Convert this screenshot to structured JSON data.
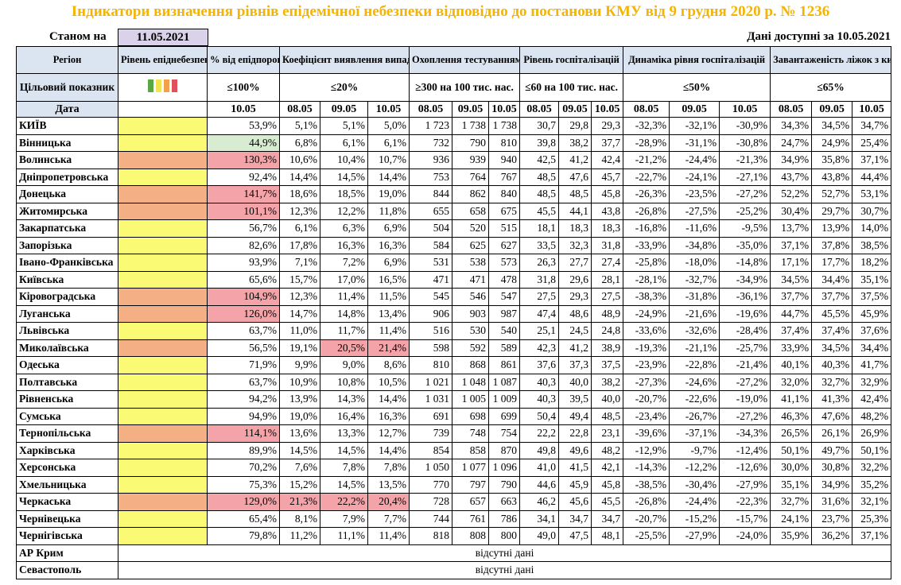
{
  "title": "Індикатори визначення рівнів епідемічної небезпеки відповідно до постанови КМУ від 9 грудня 2020 р. № 1236",
  "status_label": "Станом на",
  "status_date": "11.05.2021",
  "data_available": "Дані доступні за  10.05.2021",
  "headers": {
    "region": "Регіон",
    "level": "Рівень епіднебезпеки",
    "pct": "% від епідпорогу",
    "coef": "Коефіцієнт виявлення випадків інфікування",
    "test": "Охоплення тестуванням",
    "hosp": "Рівень госпіталізацій",
    "dyn": "Динаміка рівня госпіталізацій",
    "beds": "Завантаженість ліжок з киснем"
  },
  "target": {
    "label": "Цільовий показник",
    "pct": "≤100%",
    "coef": "≤20%",
    "test": "≥300 на 100 тис. нас.",
    "hosp": "≤60 на 100 тис. нас.",
    "dyn": "≤50%",
    "beds": "≤65%"
  },
  "swatch_colors": [
    "#5aa845",
    "#f2e34f",
    "#f3a04a",
    "#e0505b"
  ],
  "date_label": "Дата",
  "dates": {
    "pct": "10.05",
    "coef": [
      "08.05",
      "09.05",
      "10.05"
    ],
    "test": [
      "08.05",
      "09.05",
      "10.05"
    ],
    "hosp": [
      "08.05",
      "09.05",
      "10.05"
    ],
    "dyn": [
      "08.05",
      "09.05",
      "10.05"
    ],
    "beds": [
      "08.05",
      "09.05",
      "10.05"
    ]
  },
  "rows": [
    {
      "region": "КИЇВ",
      "level": "yellow",
      "pct": "53,9%",
      "coef": [
        "5,1%",
        "5,1%",
        "5,0%"
      ],
      "test": [
        "1 723",
        "1 738",
        "1 738"
      ],
      "hosp": [
        "30,7",
        "29,8",
        "29,3"
      ],
      "dyn": [
        "-32,3%",
        "-32,1%",
        "-30,9%"
      ],
      "beds": [
        "34,3%",
        "34,5%",
        "34,7%"
      ]
    },
    {
      "region": "Вінницька",
      "level": "yellow",
      "pct": "44,9%",
      "pct_hl": "green",
      "coef": [
        "6,8%",
        "6,1%",
        "6,1%"
      ],
      "test": [
        "732",
        "790",
        "810"
      ],
      "hosp": [
        "39,8",
        "38,2",
        "37,7"
      ],
      "dyn": [
        "-28,9%",
        "-31,1%",
        "-30,8%"
      ],
      "beds": [
        "24,7%",
        "24,9%",
        "25,4%"
      ]
    },
    {
      "region": "Волинська",
      "level": "orange",
      "pct": "130,3%",
      "pct_hl": "red",
      "coef": [
        "10,6%",
        "10,4%",
        "10,7%"
      ],
      "test": [
        "936",
        "939",
        "940"
      ],
      "hosp": [
        "42,5",
        "41,2",
        "42,4"
      ],
      "dyn": [
        "-21,2%",
        "-24,4%",
        "-21,3%"
      ],
      "beds": [
        "34,9%",
        "35,8%",
        "37,1%"
      ]
    },
    {
      "region": "Дніпропетровська",
      "level": "yellow",
      "pct": "92,4%",
      "coef": [
        "14,4%",
        "14,5%",
        "14,4%"
      ],
      "test": [
        "753",
        "764",
        "767"
      ],
      "hosp": [
        "48,5",
        "47,6",
        "45,7"
      ],
      "dyn": [
        "-22,7%",
        "-24,1%",
        "-27,1%"
      ],
      "beds": [
        "43,7%",
        "43,8%",
        "44,4%"
      ]
    },
    {
      "region": "Донецька",
      "level": "orange",
      "pct": "141,7%",
      "pct_hl": "red",
      "coef": [
        "18,6%",
        "18,5%",
        "19,0%"
      ],
      "test": [
        "844",
        "862",
        "840"
      ],
      "hosp": [
        "48,5",
        "48,5",
        "45,8"
      ],
      "dyn": [
        "-26,3%",
        "-23,5%",
        "-27,2%"
      ],
      "beds": [
        "52,2%",
        "52,7%",
        "53,1%"
      ]
    },
    {
      "region": "Житомирська",
      "level": "orange",
      "pct": "101,1%",
      "pct_hl": "red",
      "coef": [
        "12,3%",
        "12,2%",
        "11,8%"
      ],
      "test": [
        "655",
        "658",
        "675"
      ],
      "hosp": [
        "45,5",
        "44,1",
        "43,8"
      ],
      "dyn": [
        "-26,8%",
        "-27,5%",
        "-25,2%"
      ],
      "beds": [
        "30,4%",
        "29,7%",
        "30,7%"
      ]
    },
    {
      "region": "Закарпатська",
      "level": "yellow",
      "pct": "56,7%",
      "coef": [
        "6,1%",
        "6,3%",
        "6,9%"
      ],
      "test": [
        "504",
        "520",
        "515"
      ],
      "hosp": [
        "18,1",
        "18,3",
        "18,3"
      ],
      "dyn": [
        "-16,8%",
        "-11,6%",
        "-9,5%"
      ],
      "beds": [
        "13,7%",
        "13,9%",
        "14,0%"
      ]
    },
    {
      "region": "Запорізька",
      "level": "yellow",
      "pct": "82,6%",
      "coef": [
        "17,8%",
        "16,3%",
        "16,3%"
      ],
      "test": [
        "584",
        "625",
        "627"
      ],
      "hosp": [
        "33,5",
        "32,3",
        "31,8"
      ],
      "dyn": [
        "-33,9%",
        "-34,8%",
        "-35,0%"
      ],
      "beds": [
        "37,1%",
        "37,8%",
        "38,5%"
      ]
    },
    {
      "region": "Івано-Франківська",
      "level": "yellow",
      "pct": "93,9%",
      "coef": [
        "7,1%",
        "7,2%",
        "6,9%"
      ],
      "test": [
        "531",
        "538",
        "573"
      ],
      "hosp": [
        "26,3",
        "27,7",
        "27,4"
      ],
      "dyn": [
        "-25,8%",
        "-18,0%",
        "-14,8%"
      ],
      "beds": [
        "17,1%",
        "17,7%",
        "18,2%"
      ]
    },
    {
      "region": "Київська",
      "level": "yellow",
      "pct": "65,6%",
      "coef": [
        "15,7%",
        "17,0%",
        "16,5%"
      ],
      "test": [
        "471",
        "471",
        "478"
      ],
      "hosp": [
        "31,8",
        "29,6",
        "28,1"
      ],
      "dyn": [
        "-28,1%",
        "-32,7%",
        "-34,9%"
      ],
      "beds": [
        "34,5%",
        "34,4%",
        "35,1%"
      ]
    },
    {
      "region": "Кіровоградська",
      "level": "orange",
      "pct": "104,9%",
      "pct_hl": "red",
      "coef": [
        "12,3%",
        "11,4%",
        "11,5%"
      ],
      "test": [
        "545",
        "546",
        "547"
      ],
      "hosp": [
        "27,5",
        "29,3",
        "27,5"
      ],
      "dyn": [
        "-38,3%",
        "-31,8%",
        "-36,1%"
      ],
      "beds": [
        "37,7%",
        "37,7%",
        "37,5%"
      ]
    },
    {
      "region": "Луганська",
      "level": "orange",
      "pct": "126,0%",
      "pct_hl": "red",
      "coef": [
        "14,7%",
        "14,8%",
        "13,4%"
      ],
      "test": [
        "906",
        "903",
        "987"
      ],
      "hosp": [
        "47,4",
        "48,6",
        "48,9"
      ],
      "dyn": [
        "-24,9%",
        "-21,6%",
        "-19,6%"
      ],
      "beds": [
        "44,7%",
        "45,5%",
        "45,9%"
      ]
    },
    {
      "region": "Львівська",
      "level": "yellow",
      "pct": "63,7%",
      "coef": [
        "11,0%",
        "11,7%",
        "11,4%"
      ],
      "test": [
        "516",
        "530",
        "540"
      ],
      "hosp": [
        "25,1",
        "24,5",
        "24,8"
      ],
      "dyn": [
        "-33,6%",
        "-32,6%",
        "-28,4%"
      ],
      "beds": [
        "37,4%",
        "37,4%",
        "37,6%"
      ]
    },
    {
      "region": "Миколаївська",
      "level": "orange",
      "pct": "56,5%",
      "coef": [
        "19,1%",
        "20,5%",
        "21,4%"
      ],
      "coef_hl": [
        "",
        "red",
        "red"
      ],
      "test": [
        "598",
        "592",
        "589"
      ],
      "hosp": [
        "42,3",
        "41,2",
        "38,9"
      ],
      "dyn": [
        "-19,3%",
        "-21,1%",
        "-25,7%"
      ],
      "beds": [
        "33,9%",
        "34,5%",
        "34,4%"
      ]
    },
    {
      "region": "Одеська",
      "level": "yellow",
      "pct": "71,9%",
      "coef": [
        "9,9%",
        "9,0%",
        "8,6%"
      ],
      "test": [
        "810",
        "868",
        "861"
      ],
      "hosp": [
        "37,6",
        "37,3",
        "37,5"
      ],
      "dyn": [
        "-23,9%",
        "-22,8%",
        "-21,4%"
      ],
      "beds": [
        "40,1%",
        "40,3%",
        "41,7%"
      ]
    },
    {
      "region": "Полтавська",
      "level": "yellow",
      "pct": "63,7%",
      "coef": [
        "10,9%",
        "10,8%",
        "10,5%"
      ],
      "test": [
        "1 021",
        "1 048",
        "1 087"
      ],
      "hosp": [
        "40,3",
        "40,0",
        "38,2"
      ],
      "dyn": [
        "-27,3%",
        "-24,6%",
        "-27,2%"
      ],
      "beds": [
        "32,0%",
        "32,7%",
        "32,9%"
      ]
    },
    {
      "region": "Рівненська",
      "level": "yellow",
      "pct": "94,2%",
      "coef": [
        "13,9%",
        "14,3%",
        "14,4%"
      ],
      "test": [
        "1 031",
        "1 005",
        "1 009"
      ],
      "hosp": [
        "40,3",
        "39,5",
        "40,0"
      ],
      "dyn": [
        "-20,7%",
        "-22,6%",
        "-19,0%"
      ],
      "beds": [
        "41,1%",
        "41,3%",
        "42,4%"
      ]
    },
    {
      "region": "Сумська",
      "level": "yellow",
      "pct": "94,9%",
      "coef": [
        "19,0%",
        "16,4%",
        "16,3%"
      ],
      "test": [
        "691",
        "698",
        "699"
      ],
      "hosp": [
        "50,4",
        "49,4",
        "48,5"
      ],
      "dyn": [
        "-23,4%",
        "-26,7%",
        "-27,2%"
      ],
      "beds": [
        "46,3%",
        "47,6%",
        "48,2%"
      ]
    },
    {
      "region": "Тернопільська",
      "level": "orange",
      "pct": "114,1%",
      "pct_hl": "red",
      "coef": [
        "13,6%",
        "13,3%",
        "12,7%"
      ],
      "test": [
        "739",
        "748",
        "754"
      ],
      "hosp": [
        "22,2",
        "22,8",
        "23,1"
      ],
      "dyn": [
        "-39,6%",
        "-37,1%",
        "-34,3%"
      ],
      "beds": [
        "26,5%",
        "26,1%",
        "26,9%"
      ]
    },
    {
      "region": "Харківська",
      "level": "yellow",
      "pct": "89,9%",
      "coef": [
        "14,5%",
        "14,5%",
        "14,4%"
      ],
      "test": [
        "854",
        "858",
        "870"
      ],
      "hosp": [
        "49,8",
        "49,6",
        "48,2"
      ],
      "dyn": [
        "-12,9%",
        "-9,7%",
        "-12,4%"
      ],
      "beds": [
        "50,1%",
        "49,7%",
        "50,1%"
      ]
    },
    {
      "region": "Херсонська",
      "level": "yellow",
      "pct": "70,2%",
      "coef": [
        "7,6%",
        "7,8%",
        "7,8%"
      ],
      "test": [
        "1 050",
        "1 077",
        "1 096"
      ],
      "hosp": [
        "41,0",
        "41,5",
        "42,1"
      ],
      "dyn": [
        "-14,3%",
        "-12,2%",
        "-12,6%"
      ],
      "beds": [
        "30,0%",
        "30,8%",
        "32,2%"
      ]
    },
    {
      "region": "Хмельницька",
      "level": "yellow",
      "pct": "75,3%",
      "coef": [
        "15,2%",
        "14,5%",
        "13,5%"
      ],
      "test": [
        "770",
        "797",
        "790"
      ],
      "hosp": [
        "44,6",
        "45,9",
        "45,8"
      ],
      "dyn": [
        "-38,5%",
        "-30,4%",
        "-27,9%"
      ],
      "beds": [
        "35,1%",
        "34,9%",
        "35,2%"
      ]
    },
    {
      "region": "Черкаська",
      "level": "orange",
      "pct": "129,0%",
      "pct_hl": "red",
      "coef": [
        "21,3%",
        "22,2%",
        "20,4%"
      ],
      "coef_hl": [
        "red",
        "red",
        "red"
      ],
      "test": [
        "728",
        "657",
        "663"
      ],
      "hosp": [
        "46,2",
        "45,6",
        "45,5"
      ],
      "dyn": [
        "-26,8%",
        "-24,4%",
        "-22,3%"
      ],
      "beds": [
        "32,7%",
        "31,6%",
        "32,1%"
      ]
    },
    {
      "region": "Чернівецька",
      "level": "yellow",
      "pct": "65,4%",
      "coef": [
        "8,1%",
        "7,9%",
        "7,7%"
      ],
      "test": [
        "744",
        "761",
        "786"
      ],
      "hosp": [
        "34,1",
        "34,7",
        "34,7"
      ],
      "dyn": [
        "-20,7%",
        "-15,2%",
        "-15,7%"
      ],
      "beds": [
        "24,1%",
        "23,7%",
        "25,3%"
      ]
    },
    {
      "region": "Чернігівська",
      "level": "yellow",
      "pct": "79,8%",
      "coef": [
        "11,2%",
        "11,1%",
        "11,4%"
      ],
      "test": [
        "818",
        "808",
        "800"
      ],
      "hosp": [
        "49,0",
        "47,5",
        "48,1"
      ],
      "dyn": [
        "-25,5%",
        "-27,9%",
        "-24,0%"
      ],
      "beds": [
        "35,9%",
        "36,2%",
        "37,1%"
      ]
    }
  ],
  "missing_rows": [
    {
      "region": "АР Крим",
      "text": "відсутні дані"
    },
    {
      "region": "Севастополь",
      "text": "відсутні дані"
    }
  ]
}
